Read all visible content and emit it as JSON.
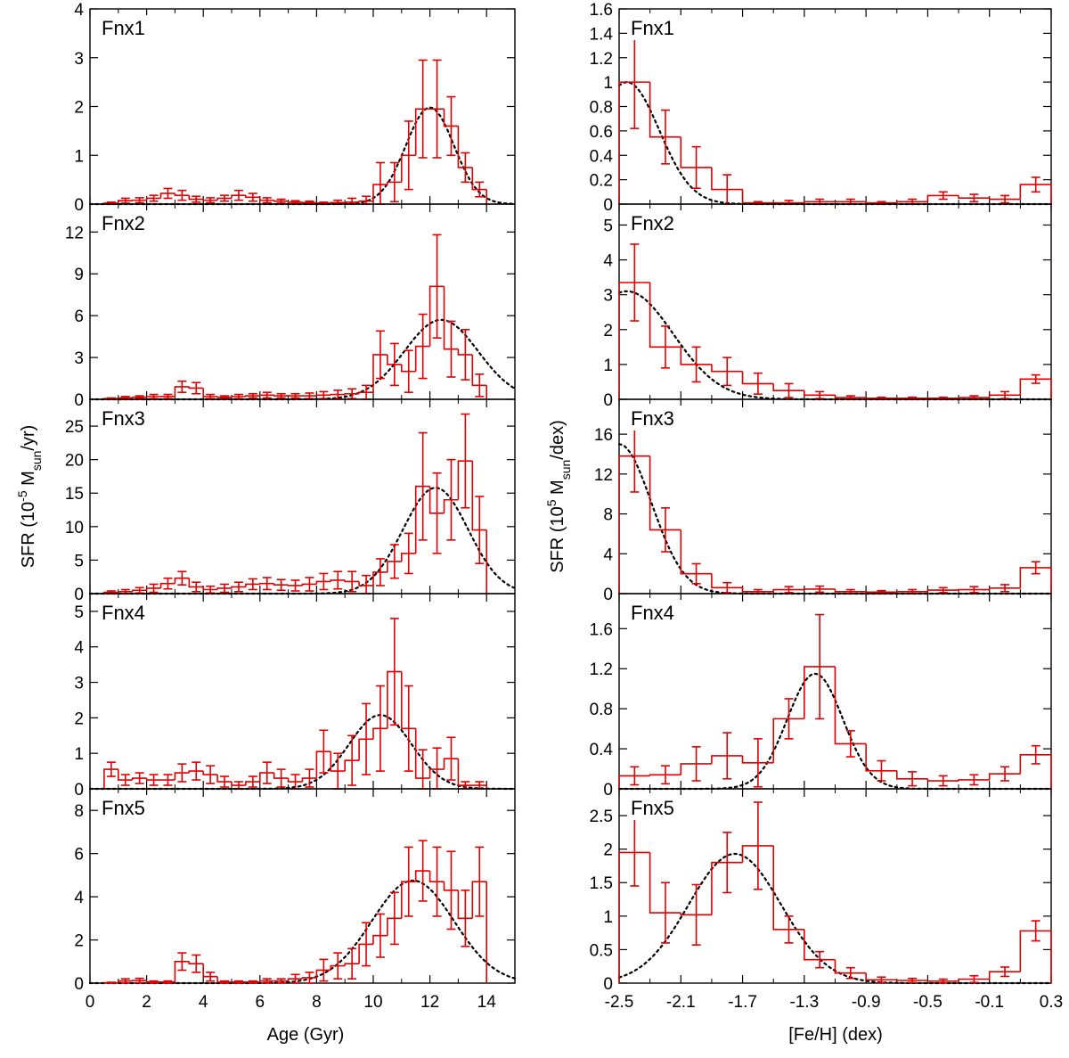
{
  "figure": {
    "left_column": {
      "xlabel": "Age (Gyr)",
      "x_ticks": [
        "0",
        "2",
        "4",
        "6",
        "8",
        "10",
        "12",
        "14"
      ],
      "ylabel": {
        "prefix": "SFR (10",
        "exp": "-5",
        "mid": " M",
        "sub": "sun",
        "suffix": "/yr)"
      }
    },
    "right_column": {
      "xlabel": "[Fe/H] (dex)",
      "x_ticks": [
        "-2.5",
        "-2.1",
        "-1.7",
        "-1.3",
        "-0.9",
        "-0.5",
        "-0.1",
        "0.3"
      ],
      "ylabel": {
        "prefix": "SFR (10",
        "exp": "5",
        "mid": " M",
        "sub": "sun",
        "suffix": "/dex)"
      }
    }
  },
  "chart_data": [
    {
      "type": "step-histogram",
      "id": "age-fnx1",
      "column": "left",
      "row": 0,
      "label": "Fnx1",
      "xlim": [
        0,
        15
      ],
      "ylim": [
        0,
        4
      ],
      "y_ticks": [
        {
          "v": 0,
          "t": "0"
        },
        {
          "v": 1,
          "t": "1"
        },
        {
          "v": 2,
          "t": "2"
        },
        {
          "v": 3,
          "t": "3"
        },
        {
          "v": 4,
          "t": "4"
        }
      ],
      "bin_edges": [
        0.5,
        1.0,
        1.5,
        2.0,
        2.5,
        3.0,
        3.5,
        4.0,
        4.5,
        5.0,
        5.5,
        6.0,
        6.5,
        7.0,
        7.5,
        8.0,
        8.5,
        9.0,
        9.5,
        10.0,
        10.5,
        11.0,
        11.5,
        12.0,
        12.5,
        13.0,
        13.5,
        14.0
      ],
      "values": [
        0.02,
        0.07,
        0.08,
        0.12,
        0.22,
        0.18,
        0.1,
        0.08,
        0.12,
        0.18,
        0.14,
        0.08,
        0.06,
        0.04,
        0.03,
        0.02,
        0.03,
        0.04,
        0.06,
        0.4,
        0.45,
        1.0,
        1.95,
        1.95,
        1.6,
        0.75,
        0.3
      ],
      "errors": [
        0.02,
        0.05,
        0.05,
        0.06,
        0.1,
        0.1,
        0.06,
        0.05,
        0.06,
        0.1,
        0.08,
        0.05,
        0.04,
        0.03,
        0.03,
        0.02,
        0.05,
        0.08,
        0.1,
        0.45,
        0.4,
        0.7,
        1.0,
        1.0,
        0.6,
        0.3,
        0.15
      ],
      "fit": {
        "amp": 1.98,
        "mu": 12.0,
        "sigma": 0.85
      }
    },
    {
      "type": "step-histogram",
      "id": "age-fnx2",
      "column": "left",
      "row": 1,
      "label": "Fnx2",
      "xlim": [
        0,
        15
      ],
      "ylim": [
        0,
        14
      ],
      "y_ticks": [
        {
          "v": 0,
          "t": "0"
        },
        {
          "v": 3,
          "t": "3"
        },
        {
          "v": 6,
          "t": "6"
        },
        {
          "v": 9,
          "t": "9"
        },
        {
          "v": 12,
          "t": "12"
        }
      ],
      "bin_edges": [
        0.5,
        1.0,
        1.5,
        2.0,
        2.5,
        3.0,
        3.5,
        4.0,
        4.5,
        5.0,
        5.5,
        6.0,
        6.5,
        7.0,
        7.5,
        8.0,
        8.5,
        9.0,
        9.5,
        10.0,
        10.5,
        11.0,
        11.5,
        12.0,
        12.5,
        13.0,
        13.5,
        14.0
      ],
      "values": [
        0.05,
        0.1,
        0.15,
        0.2,
        0.2,
        0.9,
        0.8,
        0.2,
        0.15,
        0.2,
        0.25,
        0.3,
        0.25,
        0.25,
        0.25,
        0.3,
        0.35,
        0.4,
        0.5,
        3.2,
        2.5,
        2.0,
        3.8,
        8.1,
        3.6,
        3.2,
        1.0
      ],
      "errors": [
        0.05,
        0.1,
        0.1,
        0.15,
        0.15,
        0.4,
        0.4,
        0.15,
        0.1,
        0.15,
        0.15,
        0.2,
        0.15,
        0.15,
        0.2,
        0.25,
        0.3,
        0.35,
        0.5,
        1.7,
        1.5,
        1.5,
        2.3,
        3.7,
        2.0,
        1.8,
        0.8
      ],
      "fit": {
        "amp": 5.7,
        "mu": 12.4,
        "sigma": 1.3
      }
    },
    {
      "type": "step-histogram",
      "id": "age-fnx3",
      "column": "left",
      "row": 2,
      "label": "Fnx3",
      "xlim": [
        0,
        15
      ],
      "ylim": [
        0,
        29
      ],
      "y_ticks": [
        {
          "v": 0,
          "t": "0"
        },
        {
          "v": 5,
          "t": "5"
        },
        {
          "v": 10,
          "t": "10"
        },
        {
          "v": 15,
          "t": "15"
        },
        {
          "v": 20,
          "t": "20"
        },
        {
          "v": 25,
          "t": "25"
        }
      ],
      "bin_edges": [
        0.5,
        1.0,
        1.5,
        2.0,
        2.5,
        3.0,
        3.5,
        4.0,
        4.5,
        5.0,
        5.5,
        6.0,
        6.5,
        7.0,
        7.5,
        8.0,
        8.5,
        9.0,
        9.5,
        10.0,
        10.5,
        11.0,
        11.5,
        12.0,
        12.5,
        13.0,
        13.5,
        14.0
      ],
      "values": [
        0.2,
        0.3,
        0.5,
        0.8,
        1.5,
        2.3,
        1.0,
        0.6,
        0.8,
        1.0,
        1.4,
        1.5,
        1.3,
        1.2,
        1.4,
        1.8,
        2.0,
        1.8,
        1.2,
        3.2,
        4.8,
        6.0,
        16.0,
        12.0,
        14.0,
        19.8,
        9.5
      ],
      "errors": [
        0.2,
        0.3,
        0.4,
        0.6,
        0.8,
        1.0,
        0.7,
        0.5,
        0.6,
        0.7,
        0.8,
        0.9,
        0.8,
        0.8,
        1.0,
        1.2,
        1.3,
        1.5,
        1.5,
        2.0,
        2.5,
        3.0,
        8.0,
        6.0,
        6.0,
        7.0,
        5.0
      ],
      "fit": {
        "amp": 15.8,
        "mu": 12.2,
        "sigma": 1.15
      }
    },
    {
      "type": "step-histogram",
      "id": "age-fnx4",
      "column": "left",
      "row": 3,
      "label": "Fnx4",
      "xlim": [
        0,
        15
      ],
      "ylim": [
        0,
        5.5
      ],
      "y_ticks": [
        {
          "v": 0,
          "t": "0"
        },
        {
          "v": 1,
          "t": "1"
        },
        {
          "v": 2,
          "t": "2"
        },
        {
          "v": 3,
          "t": "3"
        },
        {
          "v": 4,
          "t": "4"
        },
        {
          "v": 5,
          "t": "5"
        }
      ],
      "bin_edges": [
        0.5,
        1.0,
        1.5,
        2.0,
        2.5,
        3.0,
        3.5,
        4.0,
        4.5,
        5.0,
        5.5,
        6.0,
        6.5,
        7.0,
        7.5,
        8.0,
        8.5,
        9.0,
        9.5,
        10.0,
        10.5,
        11.0,
        11.5,
        12.0,
        12.5,
        13.0,
        13.5,
        14.0
      ],
      "values": [
        0.55,
        0.25,
        0.3,
        0.25,
        0.25,
        0.45,
        0.5,
        0.4,
        0.2,
        0.1,
        0.2,
        0.45,
        0.3,
        0.2,
        0.3,
        1.05,
        0.5,
        0.8,
        1.4,
        1.7,
        3.3,
        1.7,
        0.3,
        0.55,
        0.85,
        0.1,
        0.1
      ],
      "errors": [
        0.2,
        0.15,
        0.15,
        0.15,
        0.15,
        0.25,
        0.25,
        0.25,
        0.15,
        0.1,
        0.15,
        0.3,
        0.25,
        0.2,
        0.25,
        0.6,
        0.5,
        0.7,
        1.0,
        1.2,
        1.5,
        1.2,
        0.8,
        0.6,
        0.6,
        0.1,
        0.1
      ],
      "fit": {
        "amp": 2.08,
        "mu": 10.25,
        "sigma": 1.1
      }
    },
    {
      "type": "step-histogram",
      "id": "age-fnx5",
      "column": "left",
      "row": 4,
      "label": "Fnx5",
      "xlim": [
        0,
        15
      ],
      "ylim": [
        0,
        9
      ],
      "y_ticks": [
        {
          "v": 0,
          "t": "0"
        },
        {
          "v": 2,
          "t": "2"
        },
        {
          "v": 4,
          "t": "4"
        },
        {
          "v": 6,
          "t": "6"
        },
        {
          "v": 8,
          "t": "8"
        }
      ],
      "bin_edges": [
        0.5,
        1.0,
        1.5,
        2.0,
        2.5,
        3.0,
        3.5,
        4.0,
        4.5,
        5.0,
        5.5,
        6.0,
        6.5,
        7.0,
        7.5,
        8.0,
        8.5,
        9.0,
        9.5,
        10.0,
        10.5,
        11.0,
        11.5,
        12.0,
        12.5,
        13.0,
        13.5,
        14.0
      ],
      "values": [
        0.02,
        0.1,
        0.12,
        0.05,
        0.05,
        1.0,
        0.9,
        0.3,
        0.05,
        0.05,
        0.05,
        0.1,
        0.1,
        0.2,
        0.25,
        0.6,
        0.8,
        0.9,
        1.8,
        2.2,
        3.0,
        4.7,
        5.2,
        4.7,
        4.3,
        3.0,
        4.7
      ],
      "errors": [
        0.02,
        0.1,
        0.1,
        0.05,
        0.05,
        0.4,
        0.4,
        0.2,
        0.05,
        0.05,
        0.05,
        0.1,
        0.1,
        0.2,
        0.25,
        0.5,
        0.6,
        0.7,
        1.0,
        1.0,
        1.2,
        1.6,
        1.4,
        1.6,
        1.8,
        1.3,
        1.6
      ],
      "fit": {
        "amp": 4.75,
        "mu": 11.4,
        "sigma": 1.45
      }
    },
    {
      "type": "step-histogram",
      "id": "feh-fnx1",
      "column": "right",
      "row": 0,
      "label": "Fnx1",
      "xlim": [
        -2.5,
        0.3
      ],
      "ylim": [
        0,
        1.6
      ],
      "y_ticks": [
        {
          "v": 0,
          "t": "0"
        },
        {
          "v": 0.2,
          "t": "0.2"
        },
        {
          "v": 0.4,
          "t": "0.4"
        },
        {
          "v": 0.6,
          "t": "0.6"
        },
        {
          "v": 0.8,
          "t": "0.8"
        },
        {
          "v": 1,
          "t": "1"
        },
        {
          "v": 1.2,
          "t": "1.2"
        },
        {
          "v": 1.4,
          "t": "1.4"
        },
        {
          "v": 1.6,
          "t": "1.6"
        }
      ],
      "bin_edges": [
        -2.5,
        -2.3,
        -2.1,
        -1.9,
        -1.7,
        -1.5,
        -1.3,
        -1.1,
        -0.9,
        -0.7,
        -0.5,
        -0.3,
        -0.1,
        0.1,
        0.3
      ],
      "values": [
        1.0,
        0.55,
        0.3,
        0.12,
        0.01,
        0.01,
        0.02,
        0.02,
        0.01,
        0.02,
        0.07,
        0.05,
        0.04,
        0.16
      ],
      "errors": [
        0.38,
        0.22,
        0.17,
        0.12,
        0.01,
        0.02,
        0.02,
        0.02,
        0.01,
        0.02,
        0.03,
        0.03,
        0.03,
        0.06
      ],
      "fit": {
        "amp": 1.0,
        "mu": -2.45,
        "sigma": 0.21
      }
    },
    {
      "type": "step-histogram",
      "id": "feh-fnx2",
      "column": "right",
      "row": 1,
      "label": "Fnx2",
      "xlim": [
        -2.5,
        0.3
      ],
      "ylim": [
        0,
        5.6
      ],
      "y_ticks": [
        {
          "v": 0,
          "t": "0"
        },
        {
          "v": 1,
          "t": "1"
        },
        {
          "v": 2,
          "t": "2"
        },
        {
          "v": 3,
          "t": "3"
        },
        {
          "v": 4,
          "t": "4"
        },
        {
          "v": 5,
          "t": "5"
        }
      ],
      "bin_edges": [
        -2.5,
        -2.3,
        -2.1,
        -1.9,
        -1.7,
        -1.5,
        -1.3,
        -1.1,
        -0.9,
        -0.7,
        -0.5,
        -0.3,
        -0.1,
        0.1,
        0.3
      ],
      "values": [
        3.35,
        1.5,
        1.0,
        0.8,
        0.45,
        0.25,
        0.12,
        0.05,
        0.03,
        0.03,
        0.03,
        0.05,
        0.12,
        0.58
      ],
      "errors": [
        1.1,
        0.6,
        0.5,
        0.4,
        0.3,
        0.2,
        0.1,
        0.05,
        0.03,
        0.03,
        0.03,
        0.05,
        0.1,
        0.12
      ],
      "fit": {
        "amp": 3.1,
        "mu": -2.45,
        "sigma": 0.3
      }
    },
    {
      "type": "step-histogram",
      "id": "feh-fnx3",
      "column": "right",
      "row": 2,
      "label": "Fnx3",
      "xlim": [
        -2.5,
        0.3
      ],
      "ylim": [
        0,
        19.5
      ],
      "y_ticks": [
        {
          "v": 0,
          "t": "0"
        },
        {
          "v": 4,
          "t": "4"
        },
        {
          "v": 8,
          "t": "8"
        },
        {
          "v": 12,
          "t": "12"
        },
        {
          "v": 16,
          "t": "16"
        }
      ],
      "bin_edges": [
        -2.5,
        -2.3,
        -2.1,
        -1.9,
        -1.7,
        -1.5,
        -1.3,
        -1.1,
        -0.9,
        -0.7,
        -0.5,
        -0.3,
        -0.1,
        0.1,
        0.3
      ],
      "values": [
        13.8,
        6.4,
        2.0,
        0.6,
        0.2,
        0.4,
        0.45,
        0.2,
        0.15,
        0.2,
        0.35,
        0.4,
        0.55,
        2.6
      ],
      "errors": [
        3.6,
        2.2,
        1.0,
        0.5,
        0.2,
        0.3,
        0.3,
        0.2,
        0.15,
        0.2,
        0.25,
        0.3,
        0.35,
        0.6
      ],
      "fit": {
        "amp": 15.0,
        "mu": -2.5,
        "sigma": 0.21
      }
    },
    {
      "type": "step-histogram",
      "id": "feh-fnx4",
      "column": "right",
      "row": 3,
      "label": "Fnx4",
      "xlim": [
        -2.5,
        0.3
      ],
      "ylim": [
        0,
        1.95
      ],
      "y_ticks": [
        {
          "v": 0,
          "t": "0"
        },
        {
          "v": 0.4,
          "t": "0.4"
        },
        {
          "v": 0.8,
          "t": "0.8"
        },
        {
          "v": 1.2,
          "t": "1.2"
        },
        {
          "v": 1.6,
          "t": "1.6"
        }
      ],
      "bin_edges": [
        -2.5,
        -2.3,
        -2.1,
        -1.9,
        -1.7,
        -1.5,
        -1.3,
        -1.1,
        -0.9,
        -0.7,
        -0.5,
        -0.3,
        -0.1,
        0.1,
        0.3
      ],
      "values": [
        0.13,
        0.14,
        0.25,
        0.33,
        0.26,
        0.7,
        1.22,
        0.45,
        0.18,
        0.1,
        0.08,
        0.09,
        0.15,
        0.34
      ],
      "errors": [
        0.09,
        0.09,
        0.17,
        0.23,
        0.24,
        0.2,
        0.52,
        0.13,
        0.1,
        0.07,
        0.05,
        0.05,
        0.07,
        0.09
      ],
      "fit": {
        "amp": 1.15,
        "mu": -1.23,
        "sigma": 0.18
      }
    },
    {
      "type": "step-histogram",
      "id": "feh-fnx5",
      "column": "right",
      "row": 4,
      "label": "Fnx5",
      "xlim": [
        -2.5,
        0.3
      ],
      "ylim": [
        0,
        2.9
      ],
      "y_ticks": [
        {
          "v": 0,
          "t": "0"
        },
        {
          "v": 0.5,
          "t": "0.5"
        },
        {
          "v": 1,
          "t": "1"
        },
        {
          "v": 1.5,
          "t": "1.5"
        },
        {
          "v": 2,
          "t": "2"
        },
        {
          "v": 2.5,
          "t": "2.5"
        }
      ],
      "bin_edges": [
        -2.5,
        -2.3,
        -2.1,
        -1.9,
        -1.7,
        -1.5,
        -1.3,
        -1.1,
        -0.9,
        -0.7,
        -0.5,
        -0.3,
        -0.1,
        0.1,
        0.3
      ],
      "values": [
        1.95,
        1.05,
        1.02,
        1.8,
        2.05,
        0.8,
        0.35,
        0.15,
        0.05,
        0.04,
        0.03,
        0.06,
        0.17,
        0.78
      ],
      "errors": [
        0.5,
        0.45,
        0.45,
        0.45,
        0.65,
        0.2,
        0.12,
        0.08,
        0.04,
        0.03,
        0.03,
        0.05,
        0.07,
        0.15
      ],
      "fit": {
        "amp": 1.93,
        "mu": -1.75,
        "sigma": 0.3
      }
    }
  ]
}
